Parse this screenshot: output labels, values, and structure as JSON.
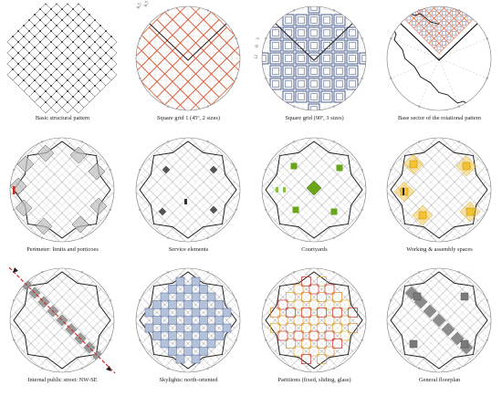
{
  "figure": {
    "panels": [
      {
        "id": "p1",
        "caption": "Basic structural pattern"
      },
      {
        "id": "p2",
        "caption": "Square grid 1 (45º, 2 sizes)",
        "dims": [
          "8,5",
          "8,5"
        ]
      },
      {
        "id": "p3",
        "caption": "Square grid (90º, 3 sizes)",
        "dims": [
          "12",
          "8",
          "3"
        ]
      },
      {
        "id": "p4",
        "caption": "Base sector of the rotational pattern"
      },
      {
        "id": "p5",
        "caption": "Perimeter: limits and porticoes"
      },
      {
        "id": "p6",
        "caption": "Service elements"
      },
      {
        "id": "p7",
        "caption": "Courtyards"
      },
      {
        "id": "p8",
        "caption": "Working & assembly spaces"
      },
      {
        "id": "p9",
        "caption": "Internal public street: NW-SE"
      },
      {
        "id": "p10",
        "caption": "Skylights: north-oriented"
      },
      {
        "id": "p11",
        "caption": "Partitions (fixed, sliding, glass)"
      },
      {
        "id": "p12",
        "caption": "General floorplan"
      }
    ]
  },
  "colors": {
    "line": "#333333",
    "light_line": "#9a9a9a",
    "orange": "#d9603a",
    "blue": "#3b4f86",
    "green": "#6aa51c",
    "yellow": "#f2c230",
    "gray_fill": "#bdbdbd",
    "red_dash": "#c8312b",
    "skylight_fill": "#b3c2d8"
  }
}
